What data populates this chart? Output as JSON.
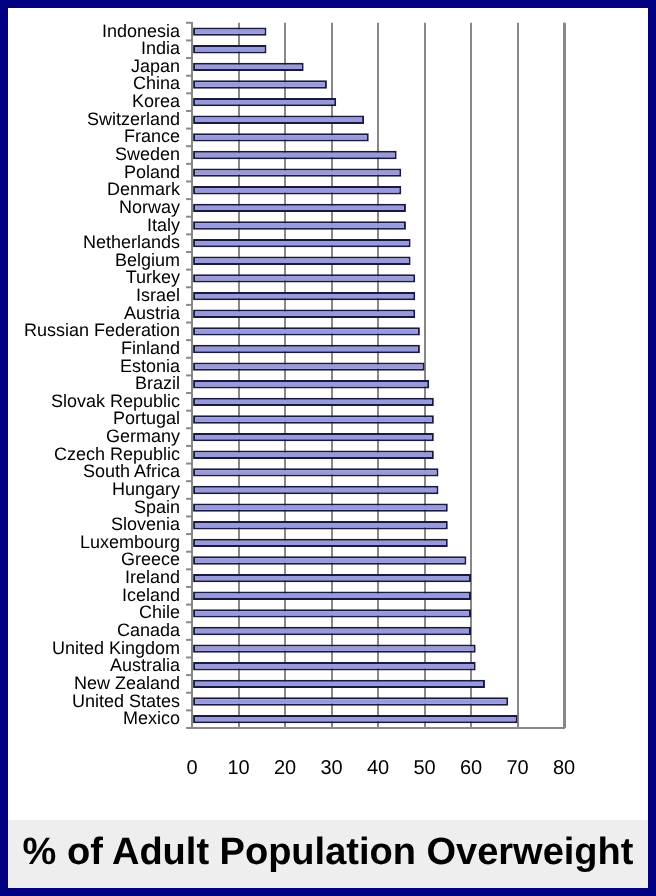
{
  "chart_data": {
    "type": "bar",
    "orientation": "horizontal",
    "title": "% of Adult Population Overweight",
    "categories": [
      "Indonesia",
      "India",
      "Japan",
      "China",
      "Korea",
      "Switzerland",
      "France",
      "Sweden",
      "Poland",
      "Denmark",
      "Norway",
      "Italy",
      "Netherlands",
      "Belgium",
      "Turkey",
      "Israel",
      "Austria",
      "Russian Federation",
      "Finland",
      "Estonia",
      "Brazil",
      "Slovak Republic",
      "Portugal",
      "Germany",
      "Czech Republic",
      "South Africa",
      "Hungary",
      "Spain",
      "Slovenia",
      "Luxembourg",
      "Greece",
      "Ireland",
      "Iceland",
      "Chile",
      "Canada",
      "United Kingdom",
      "Australia",
      "New Zealand",
      "United States",
      "Mexico"
    ],
    "values": [
      16,
      16,
      24,
      29,
      31,
      37,
      38,
      44,
      45,
      45,
      46,
      46,
      47,
      47,
      48,
      48,
      48,
      49,
      49,
      50,
      51,
      52,
      52,
      52,
      52,
      53,
      53,
      55,
      55,
      55,
      59,
      60,
      60,
      60,
      60,
      61,
      61,
      63,
      68,
      70
    ],
    "color": "#9999dd",
    "xlim": [
      0,
      80
    ],
    "xticks": [
      0,
      10,
      20,
      30,
      40,
      50,
      60,
      70,
      80
    ],
    "grid": "x",
    "legend": false
  }
}
